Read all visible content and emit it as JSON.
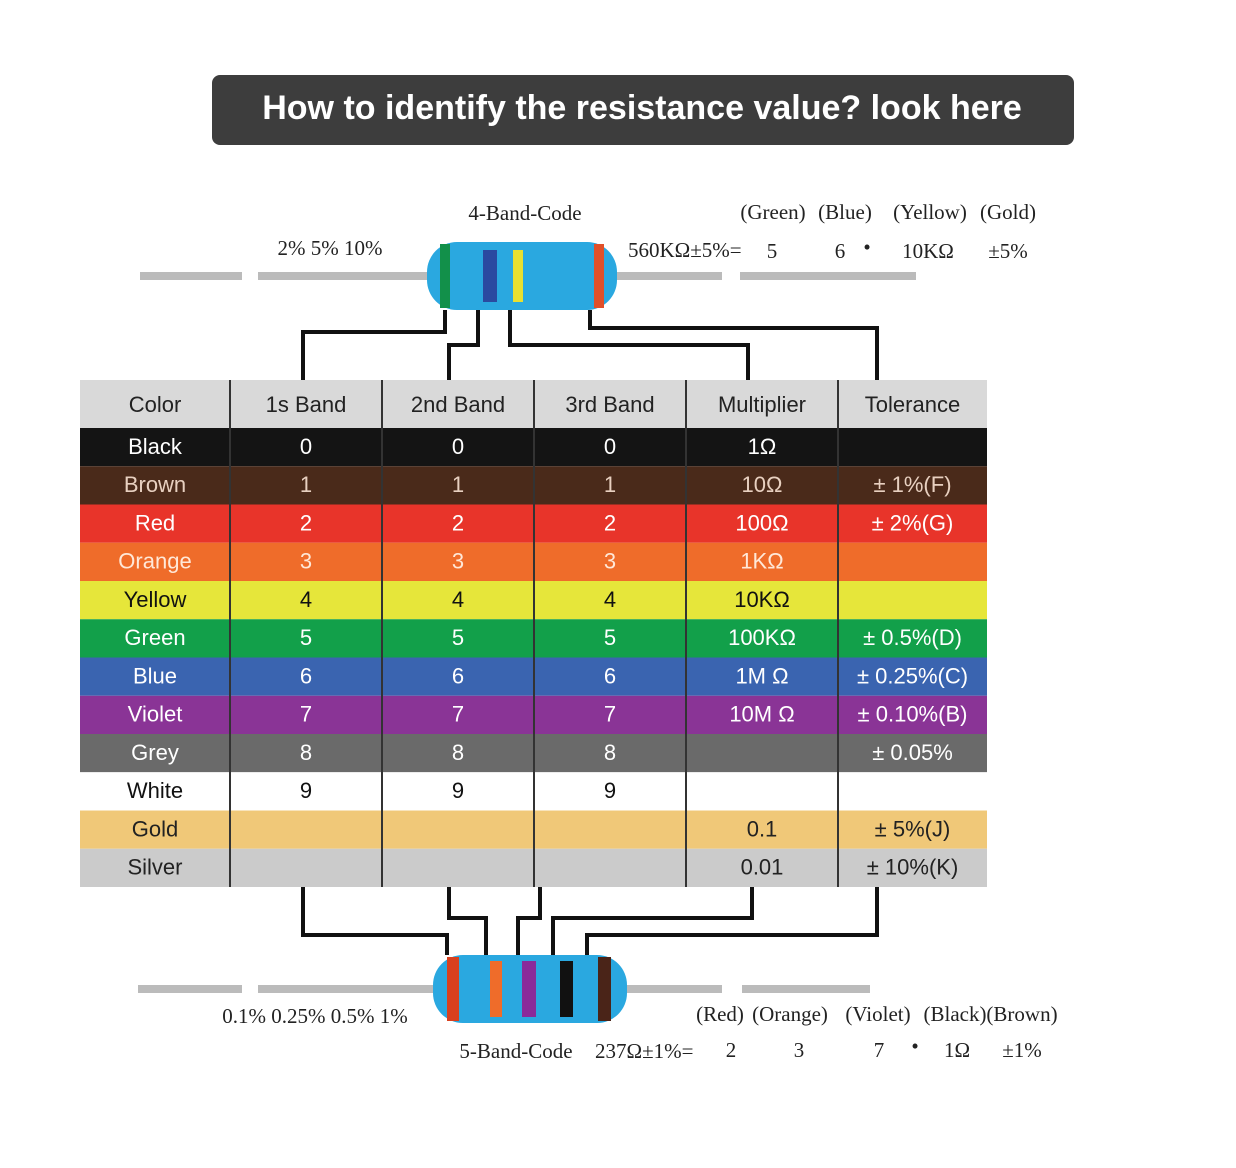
{
  "title": "How to identify the resistance value? look here",
  "band4": {
    "label": "4-Band-Code",
    "tolerances": "2% 5% 10%",
    "equation": "560KΩ±5%=",
    "colors": [
      "(Green)",
      "(Blue)",
      "(Yellow)",
      "(Gold)"
    ],
    "values": [
      "5",
      "6",
      "10KΩ",
      "±5%"
    ],
    "operator": "•"
  },
  "table": {
    "headers": [
      "Color",
      "1s Band",
      "2nd  Band",
      "3rd  Band",
      "Multiplier",
      "Tolerance"
    ],
    "rows": [
      [
        "Black",
        "0",
        "0",
        "0",
        "1Ω",
        null
      ],
      [
        "Brown",
        "1",
        "1",
        "1",
        "10Ω",
        "± 1%(F)"
      ],
      [
        "Red",
        "2",
        "2",
        "2",
        "100Ω",
        "± 2%(G)"
      ],
      [
        "Orange",
        "3",
        "3",
        "3",
        "1KΩ",
        null
      ],
      [
        "Yellow",
        "4",
        "4",
        "4",
        "10KΩ",
        null
      ],
      [
        "Green",
        "5",
        "5",
        "5",
        "100KΩ",
        "± 0.5%(D)"
      ],
      [
        "Blue",
        "6",
        "6",
        "6",
        "1M Ω",
        "± 0.25%(C)"
      ],
      [
        "Violet",
        "7",
        "7",
        "7",
        "10M Ω",
        "± 0.10%(B)"
      ],
      [
        "Grey",
        "8",
        "8",
        "8",
        null,
        "± 0.05%"
      ],
      [
        "White",
        "9",
        "9",
        "9",
        null,
        null
      ],
      [
        "Gold",
        null,
        null,
        null,
        "0.1",
        "± 5%(J)"
      ],
      [
        "Silver",
        null,
        null,
        null,
        "0.01",
        "± 10%(K)"
      ]
    ]
  },
  "band5": {
    "label": "5-Band-Code",
    "tolerances": "0.1% 0.25% 0.5% 1%",
    "equation": "237Ω±1%=",
    "colors": [
      "(Red)",
      "(Orange)",
      "(Violet)",
      "(Black)",
      "(Brown)"
    ],
    "values": [
      "2",
      "3",
      "7",
      "1Ω",
      "±1%"
    ],
    "operator": "•"
  }
}
